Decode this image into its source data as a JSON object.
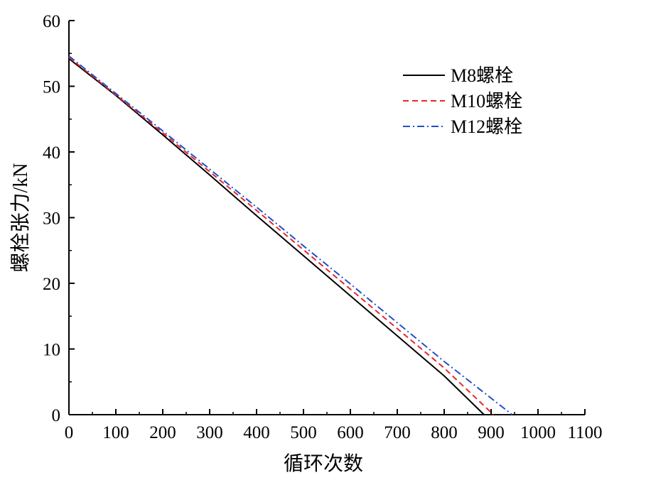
{
  "chart_data": {
    "type": "line",
    "xlabel": "循环次数",
    "ylabel": "螺栓张力/kN",
    "xlim": [
      0,
      1100
    ],
    "ylim": [
      0,
      60
    ],
    "xticks": [
      0,
      100,
      200,
      300,
      400,
      500,
      600,
      700,
      800,
      900,
      1000,
      1100
    ],
    "yticks": [
      0,
      10,
      20,
      30,
      40,
      50,
      60
    ],
    "grid": false,
    "legend_position": "top-right",
    "series": [
      {
        "name": "M8螺栓",
        "color": "#000000",
        "dash": "solid",
        "points": [
          [
            0,
            54.2
          ],
          [
            100,
            48.6
          ],
          [
            200,
            42.6
          ],
          [
            300,
            36.5
          ],
          [
            400,
            30.3
          ],
          [
            500,
            24.2
          ],
          [
            600,
            18.1
          ],
          [
            700,
            12.0
          ],
          [
            800,
            5.9
          ],
          [
            885,
            0
          ]
        ]
      },
      {
        "name": "M10螺栓",
        "color": "#e8262b",
        "dash": "dashed",
        "points": [
          [
            0,
            54.4
          ],
          [
            100,
            48.7
          ],
          [
            200,
            42.9
          ],
          [
            300,
            37.0
          ],
          [
            400,
            31.1
          ],
          [
            500,
            25.1
          ],
          [
            600,
            19.1
          ],
          [
            700,
            13.1
          ],
          [
            800,
            7.1
          ],
          [
            905,
            0
          ]
        ]
      },
      {
        "name": "M12螺栓",
        "color": "#1f4fc9",
        "dash": "dash-dot",
        "points": [
          [
            0,
            54.6
          ],
          [
            100,
            48.9
          ],
          [
            200,
            43.2
          ],
          [
            300,
            37.4
          ],
          [
            400,
            31.6
          ],
          [
            500,
            25.7
          ],
          [
            600,
            19.9
          ],
          [
            700,
            14.0
          ],
          [
            800,
            8.1
          ],
          [
            945,
            0
          ]
        ]
      }
    ]
  }
}
